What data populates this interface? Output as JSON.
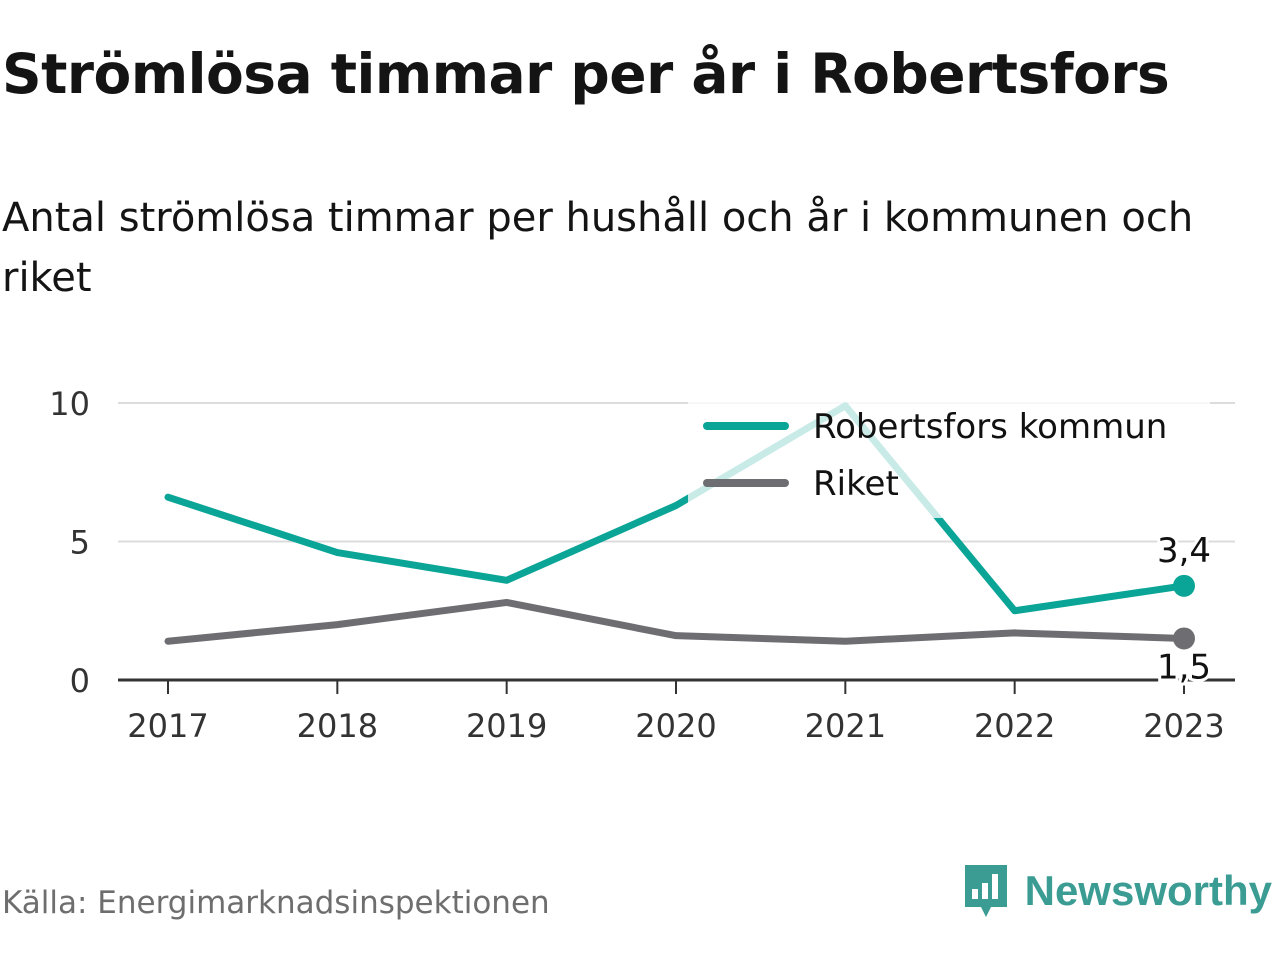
{
  "header": {
    "title": "Strömlösa timmar per år i Robertsfors",
    "subtitle": "Antal strömlösa timmar per hushåll och år i kommunen och riket"
  },
  "chart_data": {
    "type": "line",
    "x": [
      "2017",
      "2018",
      "2019",
      "2020",
      "2021",
      "2022",
      "2023"
    ],
    "y_ticks": [
      0,
      5,
      10
    ],
    "ylim": [
      0,
      10
    ],
    "grid": true,
    "legend_position": "top-right",
    "series": [
      {
        "name": "Robertsfors kommun",
        "color": "#0aa597",
        "values": [
          6.6,
          4.6,
          3.6,
          6.3,
          9.9,
          2.5,
          3.4
        ],
        "end_label": "3,4"
      },
      {
        "name": "Riket",
        "color": "#6e6d72",
        "values": [
          1.4,
          2.0,
          2.8,
          1.6,
          1.4,
          1.7,
          1.5
        ],
        "end_label": "1,5"
      }
    ]
  },
  "footer": {
    "source": "Källa: Energimarknadsinspektionen",
    "brand": "Newsworthy",
    "brand_color": "#3a9c93"
  }
}
